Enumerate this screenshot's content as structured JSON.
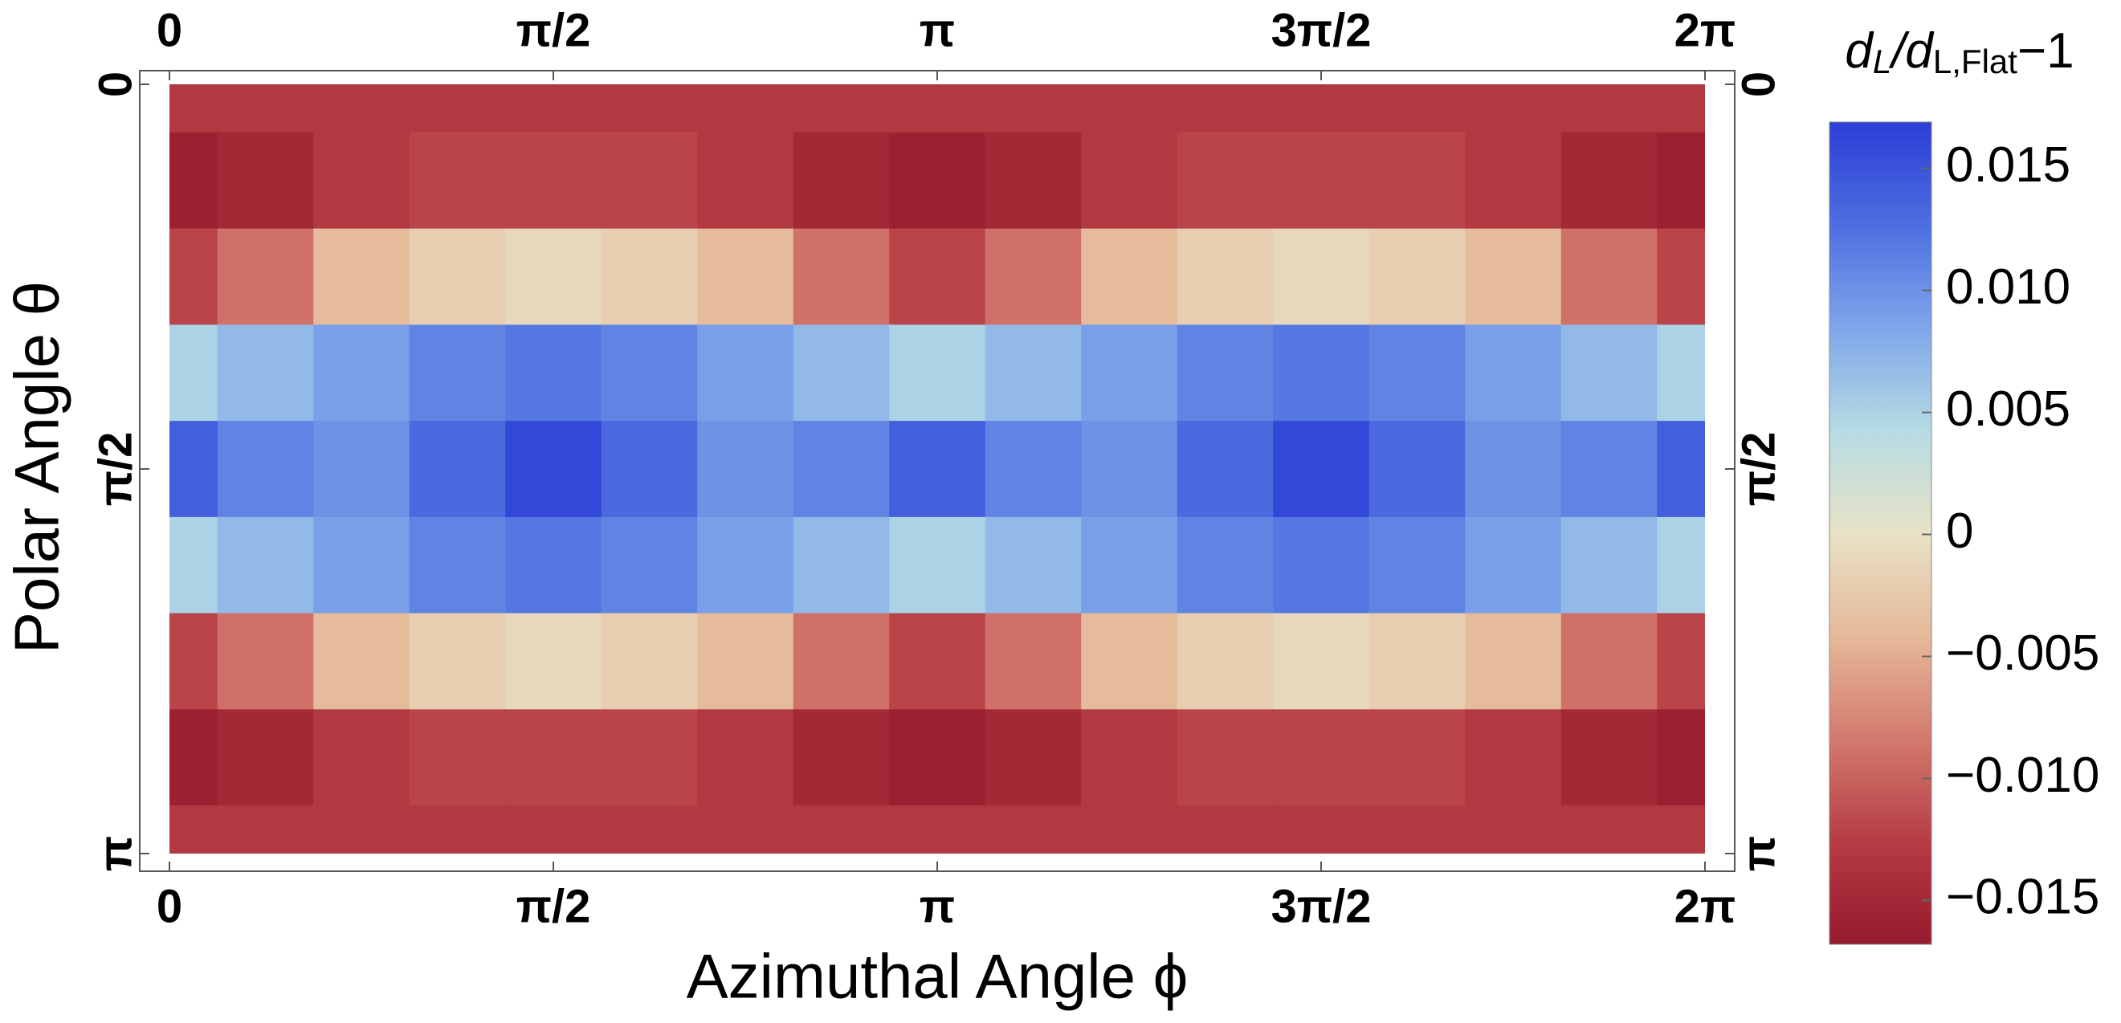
{
  "chart_data": {
    "type": "heatmap",
    "x_label": "Azimuthal Angle ϕ",
    "y_label": "Polar Angle θ",
    "colorbar_label": [
      "d",
      "L",
      "/d",
      "L,Flat",
      "−1"
    ],
    "x": [
      0,
      0.3927,
      0.7854,
      1.1781,
      1.5708,
      1.9635,
      2.3562,
      2.7489,
      3.1416,
      3.5343,
      3.927,
      4.3197,
      4.7124,
      5.1051,
      5.4978,
      5.8905,
      6.2832
    ],
    "y": [
      0,
      0.3927,
      0.7854,
      1.1781,
      1.5708,
      1.9635,
      2.3562,
      2.7489,
      3.1416
    ],
    "z": [
      [
        -0.013,
        -0.013,
        -0.013,
        -0.013,
        -0.013,
        -0.013,
        -0.013,
        -0.013,
        -0.013,
        -0.013,
        -0.013,
        -0.013,
        -0.013,
        -0.013,
        -0.013,
        -0.013,
        -0.013
      ],
      [
        -0.016,
        -0.015,
        -0.013,
        -0.012,
        -0.012,
        -0.012,
        -0.013,
        -0.015,
        -0.016,
        -0.015,
        -0.013,
        -0.012,
        -0.012,
        -0.012,
        -0.013,
        -0.015,
        -0.016
      ],
      [
        -0.012,
        -0.009,
        -0.004,
        -0.002,
        -0.001,
        -0.002,
        -0.004,
        -0.009,
        -0.012,
        -0.009,
        -0.004,
        -0.002,
        -0.001,
        -0.002,
        -0.004,
        -0.009,
        -0.012
      ],
      [
        0.005,
        0.007,
        0.009,
        0.011,
        0.012,
        0.011,
        0.009,
        0.007,
        0.005,
        0.007,
        0.009,
        0.011,
        0.012,
        0.011,
        0.009,
        0.007,
        0.005
      ],
      [
        0.014,
        0.011,
        0.01,
        0.013,
        0.016,
        0.013,
        0.01,
        0.011,
        0.014,
        0.011,
        0.01,
        0.013,
        0.016,
        0.013,
        0.01,
        0.011,
        0.014
      ],
      [
        0.005,
        0.007,
        0.009,
        0.011,
        0.012,
        0.011,
        0.009,
        0.007,
        0.005,
        0.007,
        0.009,
        0.011,
        0.012,
        0.011,
        0.009,
        0.007,
        0.005
      ],
      [
        -0.012,
        -0.009,
        -0.004,
        -0.002,
        -0.001,
        -0.002,
        -0.004,
        -0.009,
        -0.012,
        -0.009,
        -0.004,
        -0.002,
        -0.001,
        -0.002,
        -0.004,
        -0.009,
        -0.012
      ],
      [
        -0.016,
        -0.015,
        -0.013,
        -0.012,
        -0.012,
        -0.012,
        -0.013,
        -0.015,
        -0.016,
        -0.015,
        -0.013,
        -0.012,
        -0.012,
        -0.012,
        -0.013,
        -0.015,
        -0.016
      ],
      [
        -0.013,
        -0.013,
        -0.013,
        -0.013,
        -0.013,
        -0.013,
        -0.013,
        -0.013,
        -0.013,
        -0.013,
        -0.013,
        -0.013,
        -0.013,
        -0.013,
        -0.013,
        -0.013,
        -0.013
      ]
    ],
    "xlim": [
      0,
      6.2832
    ],
    "ylim": [
      0,
      3.1416
    ],
    "y_inverted": true,
    "xticks": [
      0,
      {
        "value": 1.5708,
        "label": "π/2"
      },
      {
        "value": 3.1416,
        "label": "π"
      },
      {
        "value": 4.7124,
        "label": "3π/2"
      },
      {
        "value": 6.2832,
        "label": "2π"
      }
    ],
    "yticks": [
      0,
      {
        "value": 1.5708,
        "label": "π/2"
      },
      {
        "value": 3.1416,
        "label": "π"
      }
    ],
    "clim": [
      -0.0168,
      0.0169
    ],
    "cticks": [
      0.015,
      {
        "value": 0.01,
        "label": "0.010"
      },
      0.005,
      0,
      {
        "value": -0.005,
        "label": "−0.005"
      },
      {
        "value": -0.01,
        "label": "−0.010"
      },
      {
        "value": -0.015,
        "label": "−0.015"
      }
    ],
    "colormap": [
      "#961a2e",
      "#b53c44",
      "#d37a6e",
      "#e6b99a",
      "#e8e2c6",
      "#b6dbe4",
      "#7fa6ea",
      "#4d6ee0",
      "#2c3dd6"
    ]
  }
}
